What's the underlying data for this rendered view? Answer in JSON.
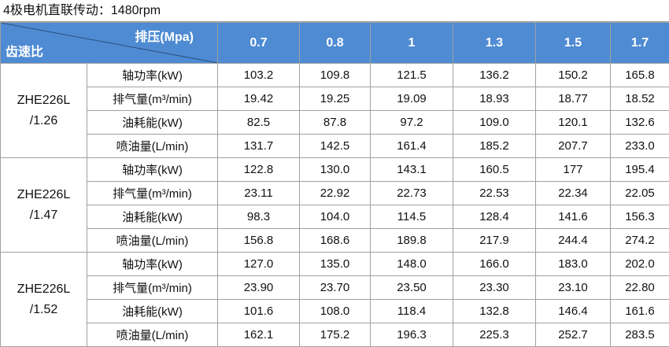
{
  "title": "4极电机直联传动：1480rpm",
  "table": {
    "header": {
      "pressure_label": "排压(Mpa)",
      "ratio_label": "齿速比",
      "pressures": [
        "0.7",
        "0.8",
        "1",
        "1.3",
        "1.5",
        "1.7"
      ]
    },
    "groups": [
      {
        "model": [
          "ZHE226L",
          "/1.26"
        ],
        "rows": [
          {
            "label": "轴功率(kW)",
            "values": [
              "103.2",
              "109.8",
              "121.5",
              "136.2",
              "150.2",
              "165.8"
            ]
          },
          {
            "label": "排气量(m³/min)",
            "values": [
              "19.42",
              "19.25",
              "19.09",
              "18.93",
              "18.77",
              "18.52"
            ]
          },
          {
            "label": "油耗能(kW)",
            "values": [
              "82.5",
              "87.8",
              "97.2",
              "109.0",
              "120.1",
              "132.6"
            ]
          },
          {
            "label": "喷油量(L/min)",
            "values": [
              "131.7",
              "142.5",
              "161.4",
              "185.2",
              "207.7",
              "233.0"
            ]
          }
        ]
      },
      {
        "model": [
          "ZHE226L",
          "/1.47"
        ],
        "rows": [
          {
            "label": "轴功率(kW)",
            "values": [
              "122.8",
              "130.0",
              "143.1",
              "160.5",
              "177",
              "195.4"
            ]
          },
          {
            "label": "排气量(m³/min)",
            "values": [
              "23.11",
              "22.92",
              "22.73",
              "22.53",
              "22.34",
              "22.05"
            ]
          },
          {
            "label": "油耗能(kW)",
            "values": [
              "98.3",
              "104.0",
              "114.5",
              "128.4",
              "141.6",
              "156.3"
            ]
          },
          {
            "label": "喷油量(L/min)",
            "values": [
              "156.8",
              "168.6",
              "189.8",
              "217.9",
              "244.4",
              "274.2"
            ]
          }
        ]
      },
      {
        "model": [
          "ZHE226L",
          "/1.52"
        ],
        "rows": [
          {
            "label": "轴功率(kW)",
            "values": [
              "127.0",
              "135.0",
              "148.0",
              "166.0",
              "183.0",
              "202.0"
            ]
          },
          {
            "label": "排气量(m³/min)",
            "values": [
              "23.90",
              "23.70",
              "23.50",
              "23.30",
              "23.10",
              "22.80"
            ]
          },
          {
            "label": "油耗能(kW)",
            "values": [
              "101.6",
              "108.0",
              "118.4",
              "132.8",
              "146.4",
              "161.6"
            ]
          },
          {
            "label": "喷油量(L/min)",
            "values": [
              "162.1",
              "175.2",
              "196.3",
              "225.3",
              "252.7",
              "283.5"
            ]
          }
        ]
      }
    ]
  }
}
